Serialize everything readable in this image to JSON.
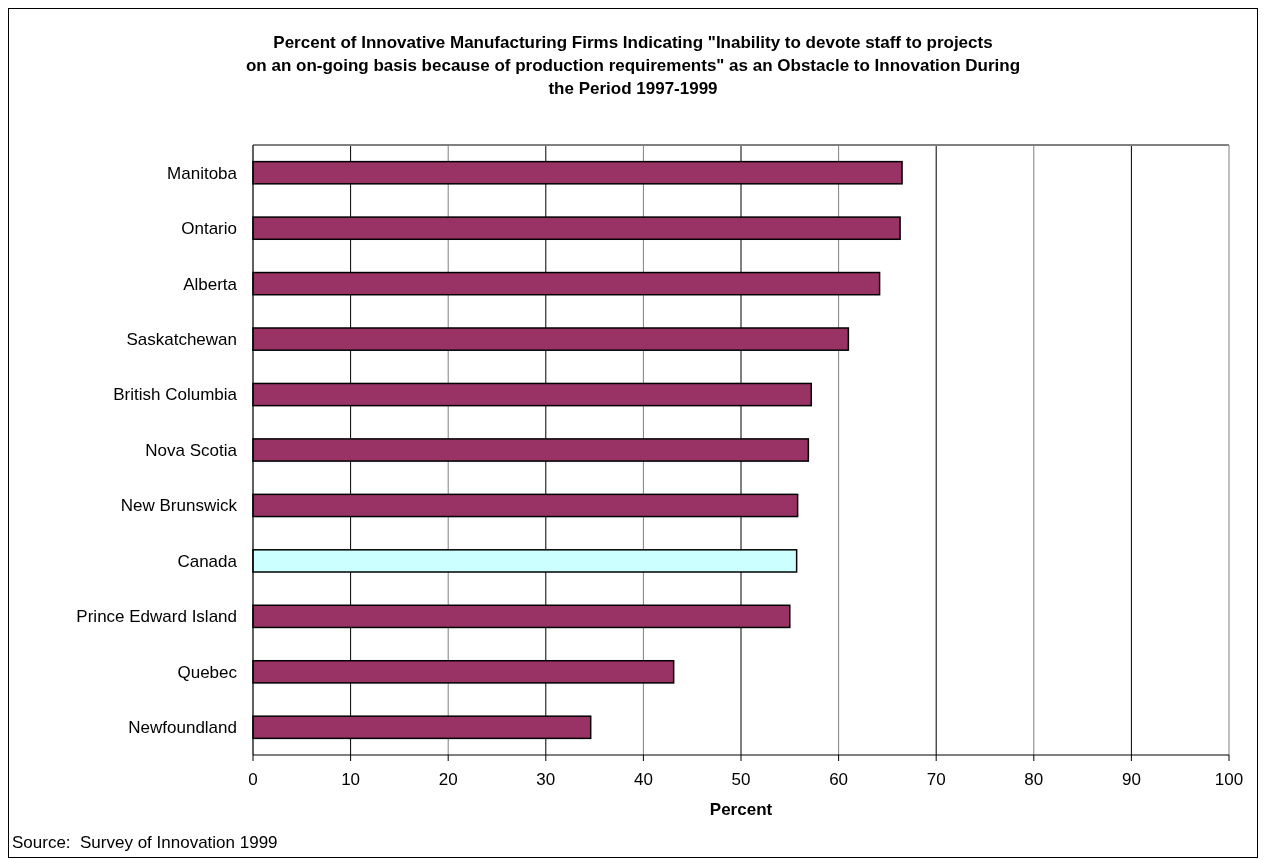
{
  "chart_data": {
    "type": "bar",
    "orientation": "horizontal",
    "title": "Percent of Innovative Manufacturing Firms Indicating \"Inability to devote staff to projects on an on-going basis because of production requirements\" as an Obstacle to Innovation During the Period 1997-1999",
    "xlabel": "Percent",
    "annotations": [
      "Source:  Survey of Innovation 1999"
    ],
    "categories": [
      "Manitoba",
      "Ontario",
      "Alberta",
      "Saskatchewan",
      "British Columbia",
      "Nova Scotia",
      "New Brunswick",
      "Canada",
      "Prince Edward Island",
      "Quebec",
      "Newfoundland"
    ],
    "values": [
      66.5,
      66.3,
      64.2,
      61.0,
      57.2,
      56.9,
      55.8,
      55.7,
      55.0,
      43.1,
      34.6
    ],
    "colors": [
      "#993366",
      "#993366",
      "#993366",
      "#993366",
      "#993366",
      "#993366",
      "#993366",
      "#ccffff",
      "#993366",
      "#993366",
      "#993366"
    ],
    "xlim": [
      0,
      100
    ],
    "xticks": [
      0,
      10,
      20,
      30,
      40,
      50,
      60,
      70,
      80,
      90,
      100
    ],
    "grid": "x"
  }
}
